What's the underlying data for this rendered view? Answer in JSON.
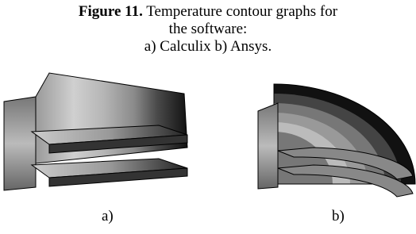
{
  "figure": {
    "label": "Figure 11.",
    "caption": "Temperature contour graphs for the software:",
    "subcaption": "a) Calculix b) Ansys.",
    "panels": [
      "a)",
      "b)"
    ]
  }
}
